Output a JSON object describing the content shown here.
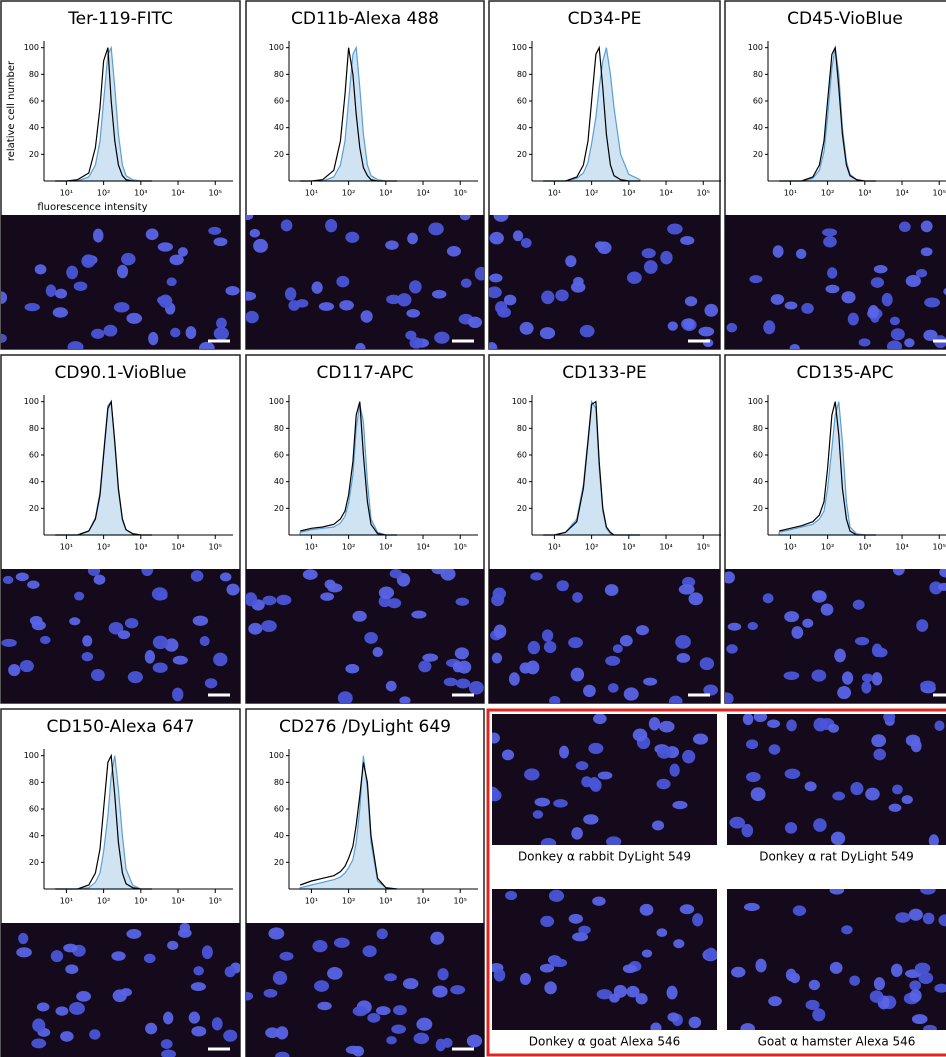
{
  "chart_data": [
    {
      "type": "area",
      "title": "Ter-119-FITC",
      "ylabel": "relative cell number",
      "xlabel": "fluorescence intensity",
      "xscale": "log",
      "x": [
        5,
        10,
        20,
        40,
        60,
        80,
        100,
        130,
        160,
        200,
        250,
        320,
        400,
        600,
        1000,
        2000
      ],
      "series": [
        {
          "color": "#5a9fd4",
          "fill": "#cfe3f3",
          "values": [
            0,
            0,
            0,
            3,
            12,
            30,
            60,
            95,
            100,
            70,
            35,
            12,
            4,
            1,
            0,
            0
          ]
        },
        {
          "color": "#000000",
          "values": [
            0,
            0,
            1,
            6,
            25,
            55,
            90,
            100,
            60,
            30,
            12,
            4,
            1,
            0,
            0,
            0
          ]
        }
      ],
      "xlim": [
        2.5,
        300000
      ],
      "xticks": [
        {
          "value": 10,
          "label": "10¹"
        },
        {
          "value": 100,
          "label": "10²"
        },
        {
          "value": 1000,
          "label": "10³"
        },
        {
          "value": 10000,
          "label": "10⁴"
        },
        {
          "value": 100000,
          "label": "10⁵"
        }
      ],
      "ylim": [
        0,
        105
      ],
      "yticks": [
        20,
        40,
        60,
        80,
        100
      ]
    },
    {
      "type": "area",
      "title": "CD11b-Alexa 488",
      "xscale": "log",
      "x": [
        5,
        10,
        20,
        40,
        60,
        80,
        100,
        130,
        160,
        200,
        250,
        320,
        400,
        600,
        1000,
        2000
      ],
      "series": [
        {
          "color": "#5a9fd4",
          "fill": "#cfe3f3",
          "values": [
            0,
            0,
            0,
            3,
            12,
            30,
            60,
            95,
            100,
            70,
            35,
            12,
            4,
            1,
            0,
            0
          ]
        },
        {
          "color": "#000000",
          "values": [
            0,
            0,
            1,
            8,
            30,
            65,
            100,
            80,
            50,
            25,
            10,
            4,
            1,
            0,
            0,
            0
          ]
        }
      ],
      "xlim": [
        2.5,
        300000
      ],
      "xticks": [
        {
          "value": 10,
          "label": "10¹"
        },
        {
          "value": 100,
          "label": "10²"
        },
        {
          "value": 1000,
          "label": "10³"
        },
        {
          "value": 10000,
          "label": "10⁴"
        },
        {
          "value": 100000,
          "label": "10⁵"
        }
      ],
      "ylim": [
        0,
        105
      ],
      "yticks": [
        20,
        40,
        60,
        80,
        100
      ]
    },
    {
      "type": "area",
      "title": "CD34-PE",
      "xscale": "log",
      "x": [
        5,
        10,
        20,
        40,
        60,
        80,
        100,
        130,
        160,
        200,
        250,
        320,
        400,
        600,
        1000,
        2000
      ],
      "series": [
        {
          "color": "#5a9fd4",
          "fill": "#cfe3f3",
          "values": [
            0,
            0,
            0,
            2,
            6,
            14,
            28,
            48,
            70,
            90,
            100,
            80,
            55,
            20,
            5,
            1
          ]
        },
        {
          "color": "#000000",
          "values": [
            0,
            0,
            0,
            3,
            12,
            30,
            60,
            95,
            100,
            70,
            35,
            12,
            4,
            1,
            0,
            0
          ]
        }
      ],
      "xlim": [
        2.5,
        300000
      ],
      "xticks": [
        {
          "value": 10,
          "label": "10¹"
        },
        {
          "value": 100,
          "label": "10²"
        },
        {
          "value": 1000,
          "label": "10³"
        },
        {
          "value": 10000,
          "label": "10⁴"
        },
        {
          "value": 100000,
          "label": "10⁵"
        }
      ],
      "ylim": [
        0,
        105
      ],
      "yticks": [
        20,
        40,
        60,
        80,
        100
      ]
    },
    {
      "type": "area",
      "title": "CD45-VioBlue",
      "xscale": "log",
      "x": [
        5,
        10,
        20,
        40,
        60,
        80,
        100,
        130,
        160,
        200,
        250,
        320,
        400,
        600,
        1000,
        2000
      ],
      "series": [
        {
          "color": "#5a9fd4",
          "fill": "#cfe3f3",
          "values": [
            0,
            0,
            0,
            2,
            8,
            22,
            48,
            85,
            100,
            80,
            40,
            15,
            5,
            1,
            0,
            0
          ]
        },
        {
          "color": "#000000",
          "values": [
            0,
            0,
            0,
            3,
            12,
            30,
            60,
            95,
            100,
            70,
            35,
            12,
            4,
            1,
            0,
            0
          ]
        }
      ],
      "xlim": [
        2.5,
        300000
      ],
      "xticks": [
        {
          "value": 10,
          "label": "10¹"
        },
        {
          "value": 100,
          "label": "10²"
        },
        {
          "value": 1000,
          "label": "10³"
        },
        {
          "value": 10000,
          "label": "10⁴"
        },
        {
          "value": 100000,
          "label": "10⁵"
        }
      ],
      "ylim": [
        0,
        105
      ],
      "yticks": [
        20,
        40,
        60,
        80,
        100
      ]
    },
    {
      "type": "area",
      "title": "CD90.1-VioBlue",
      "xscale": "log",
      "x": [
        5,
        10,
        20,
        40,
        60,
        80,
        100,
        130,
        160,
        200,
        250,
        320,
        400,
        600,
        1000,
        2000
      ],
      "series": [
        {
          "color": "#5a9fd4",
          "fill": "#cfe3f3",
          "values": [
            0,
            0,
            0,
            3,
            13,
            32,
            62,
            97,
            100,
            68,
            33,
            11,
            4,
            1,
            0,
            0
          ]
        },
        {
          "color": "#000000",
          "values": [
            0,
            0,
            0,
            3,
            12,
            30,
            60,
            95,
            100,
            70,
            35,
            12,
            4,
            1,
            0,
            0
          ]
        }
      ],
      "xlim": [
        2.5,
        300000
      ],
      "xticks": [
        {
          "value": 10,
          "label": "10¹"
        },
        {
          "value": 100,
          "label": "10²"
        },
        {
          "value": 1000,
          "label": "10³"
        },
        {
          "value": 10000,
          "label": "10⁴"
        },
        {
          "value": 100000,
          "label": "10⁵"
        }
      ],
      "ylim": [
        0,
        105
      ],
      "yticks": [
        20,
        40,
        60,
        80,
        100
      ]
    },
    {
      "type": "area",
      "title": "CD117-APC",
      "xscale": "log",
      "x": [
        5,
        10,
        20,
        40,
        60,
        80,
        100,
        130,
        160,
        200,
        250,
        320,
        400,
        600,
        1000,
        2000
      ],
      "series": [
        {
          "color": "#5a9fd4",
          "fill": "#cfe3f3",
          "values": [
            2,
            4,
            5,
            6,
            9,
            14,
            24,
            45,
            80,
            98,
            85,
            40,
            12,
            2,
            0,
            0
          ]
        },
        {
          "color": "#000000",
          "values": [
            3,
            5,
            6,
            8,
            12,
            18,
            30,
            55,
            90,
            100,
            60,
            25,
            8,
            1,
            0,
            0
          ]
        }
      ],
      "xlim": [
        2.5,
        300000
      ],
      "xticks": [
        {
          "value": 10,
          "label": "10¹"
        },
        {
          "value": 100,
          "label": "10²"
        },
        {
          "value": 1000,
          "label": "10³"
        },
        {
          "value": 10000,
          "label": "10⁴"
        },
        {
          "value": 100000,
          "label": "10⁵"
        }
      ],
      "ylim": [
        0,
        105
      ],
      "yticks": [
        20,
        40,
        60,
        80,
        100
      ]
    },
    {
      "type": "area",
      "title": "CD133-PE",
      "xscale": "log",
      "x": [
        5,
        10,
        20,
        40,
        60,
        80,
        100,
        130,
        160,
        200,
        250,
        320,
        400,
        600,
        1000,
        2000
      ],
      "series": [
        {
          "color": "#5a9fd4",
          "fill": "#cfe3f3",
          "values": [
            0,
            0,
            2,
            12,
            38,
            72,
            100,
            95,
            50,
            18,
            5,
            1,
            0,
            0,
            0,
            0
          ]
        },
        {
          "color": "#000000",
          "values": [
            0,
            0,
            2,
            10,
            35,
            70,
            98,
            100,
            55,
            20,
            6,
            2,
            0,
            0,
            0,
            0
          ]
        }
      ],
      "xlim": [
        2.5,
        300000
      ],
      "xticks": [
        {
          "value": 10,
          "label": "10¹"
        },
        {
          "value": 100,
          "label": "10²"
        },
        {
          "value": 1000,
          "label": "10³"
        },
        {
          "value": 10000,
          "label": "10⁴"
        },
        {
          "value": 100000,
          "label": "10⁵"
        }
      ],
      "ylim": [
        0,
        105
      ],
      "yticks": [
        20,
        40,
        60,
        80,
        100
      ]
    },
    {
      "type": "area",
      "title": "CD135-APC",
      "xscale": "log",
      "x": [
        5,
        10,
        20,
        40,
        60,
        80,
        100,
        130,
        160,
        200,
        250,
        320,
        400,
        600,
        1000,
        2000
      ],
      "series": [
        {
          "color": "#5a9fd4",
          "fill": "#cfe3f3",
          "values": [
            2,
            4,
            6,
            8,
            12,
            18,
            35,
            65,
            90,
            100,
            70,
            25,
            6,
            1,
            0,
            0
          ]
        },
        {
          "color": "#000000",
          "values": [
            3,
            5,
            7,
            10,
            15,
            25,
            50,
            90,
            100,
            75,
            35,
            12,
            3,
            0,
            0,
            0
          ]
        }
      ],
      "xlim": [
        2.5,
        300000
      ],
      "xticks": [
        {
          "value": 10,
          "label": "10¹"
        },
        {
          "value": 100,
          "label": "10²"
        },
        {
          "value": 1000,
          "label": "10³"
        },
        {
          "value": 10000,
          "label": "10⁴"
        },
        {
          "value": 100000,
          "label": "10⁵"
        }
      ],
      "ylim": [
        0,
        105
      ],
      "yticks": [
        20,
        40,
        60,
        80,
        100
      ]
    },
    {
      "type": "area",
      "title": "CD150-Alexa 647",
      "xscale": "log",
      "x": [
        5,
        10,
        20,
        40,
        60,
        80,
        100,
        130,
        160,
        200,
        250,
        320,
        400,
        600,
        1000,
        2000
      ],
      "series": [
        {
          "color": "#5a9fd4",
          "fill": "#cfe3f3",
          "values": [
            0,
            0,
            0,
            1,
            5,
            12,
            28,
            55,
            85,
            100,
            75,
            40,
            15,
            3,
            0,
            0
          ]
        },
        {
          "color": "#000000",
          "values": [
            0,
            0,
            0,
            3,
            12,
            30,
            60,
            95,
            100,
            70,
            35,
            12,
            4,
            1,
            0,
            0
          ]
        }
      ],
      "xlim": [
        2.5,
        300000
      ],
      "xticks": [
        {
          "value": 10,
          "label": "10¹"
        },
        {
          "value": 100,
          "label": "10²"
        },
        {
          "value": 1000,
          "label": "10³"
        },
        {
          "value": 10000,
          "label": "10⁴"
        },
        {
          "value": 100000,
          "label": "10⁵"
        }
      ],
      "ylim": [
        0,
        105
      ],
      "yticks": [
        20,
        40,
        60,
        80,
        100
      ]
    },
    {
      "type": "area",
      "title": "CD276 /DyLight 649",
      "xscale": "log",
      "x": [
        5,
        10,
        20,
        40,
        60,
        80,
        100,
        130,
        160,
        200,
        250,
        320,
        400,
        600,
        1000,
        2000
      ],
      "series": [
        {
          "color": "#5a9fd4",
          "fill": "#cfe3f3",
          "values": [
            1,
            3,
            5,
            7,
            9,
            12,
            16,
            22,
            35,
            60,
            100,
            75,
            35,
            6,
            1,
            0
          ]
        },
        {
          "color": "#000000",
          "values": [
            3,
            6,
            8,
            10,
            13,
            17,
            23,
            32,
            48,
            70,
            95,
            80,
            40,
            8,
            1,
            0
          ]
        }
      ],
      "xlim": [
        2.5,
        300000
      ],
      "xticks": [
        {
          "value": 10,
          "label": "10¹"
        },
        {
          "value": 100,
          "label": "10²"
        },
        {
          "value": 1000,
          "label": "10³"
        },
        {
          "value": 10000,
          "label": "10⁴"
        },
        {
          "value": 100000,
          "label": "10⁵"
        }
      ],
      "ylim": [
        0,
        105
      ],
      "yticks": [
        20,
        40,
        60,
        80,
        100
      ]
    }
  ],
  "controls": {
    "labels": [
      "Donkey α rabbit DyLight 549",
      "Donkey α rat DyLight 549",
      "Donkey α goat Alexa 546",
      "Goat α hamster Alexa 546"
    ]
  }
}
